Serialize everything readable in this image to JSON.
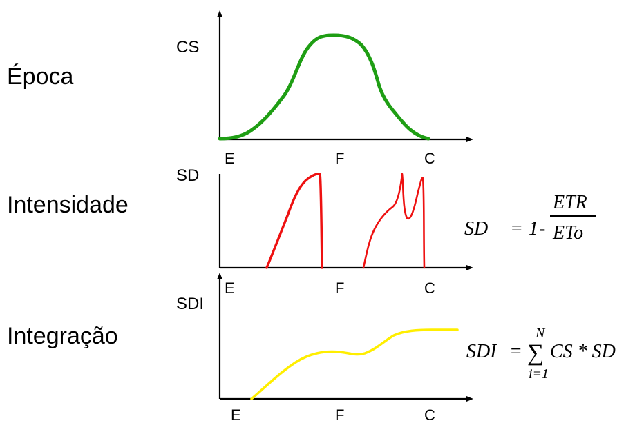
{
  "rows": [
    {
      "label": "Época",
      "axis_label": "CS",
      "ticks": [
        "E",
        "F",
        "C"
      ],
      "color": "#1f9e14"
    },
    {
      "label": "Intensidade",
      "axis_label": "SD",
      "ticks": [
        "E",
        "F",
        "C"
      ],
      "color": "#ee1111"
    },
    {
      "label": "Integração",
      "axis_label": "SDI",
      "ticks": [
        "E",
        "F",
        "C"
      ],
      "color": "#ffee00"
    }
  ],
  "formula_sd": {
    "lhs": "SD",
    "equals": "=",
    "one": "1",
    "minus": "-",
    "numerator": "ETR",
    "denominator": "ETo"
  },
  "formula_sdi": {
    "lhs": "SDI",
    "equals": "=",
    "sigma": "∑",
    "upper": "N",
    "lower": "i=1",
    "body": "CS * SD"
  }
}
